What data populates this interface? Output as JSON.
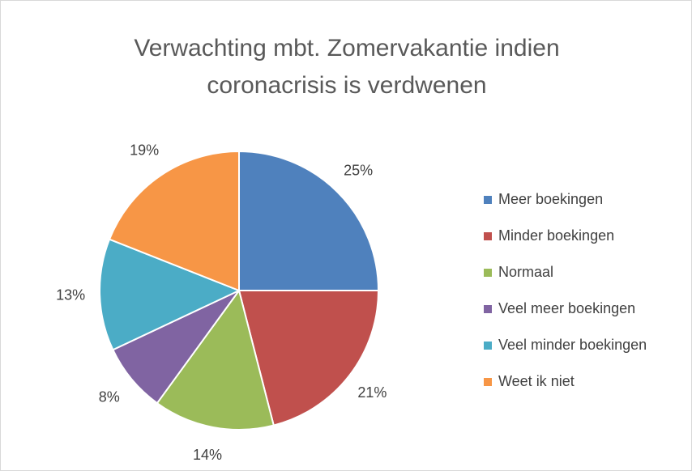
{
  "chart_data": {
    "type": "pie",
    "title": "Verwachting mbt. Zomervakantie indien coronacrisis is verdwenen",
    "categories": [
      "Meer boekingen",
      "Minder boekingen",
      "Normaal",
      "Veel meer boekingen",
      "Veel minder boekingen",
      "Weet ik niet"
    ],
    "values": [
      25,
      21,
      14,
      8,
      13,
      19
    ],
    "value_labels": [
      "25%",
      "21%",
      "14%",
      "8%",
      "13%",
      "19%"
    ],
    "colors": [
      "#4f81bd",
      "#c0504d",
      "#9bbb59",
      "#8064a2",
      "#4bacc6",
      "#f79646"
    ],
    "legend": "right"
  }
}
